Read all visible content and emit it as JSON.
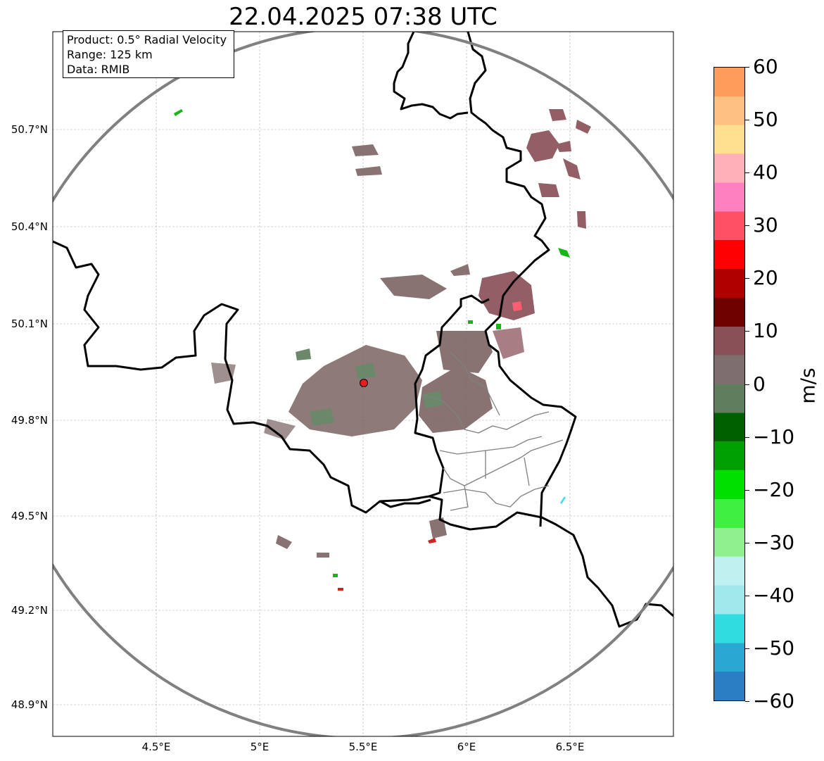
{
  "title": "22.04.2025 07:38 UTC",
  "info": {
    "product": "Product: 0.5° Radial Velocity",
    "range": "Range: 125 km",
    "source": "Data: RMIB"
  },
  "axes": {
    "lat_labels": [
      "50.7°N",
      "50.4°N",
      "50.1°N",
      "49.8°N",
      "49.5°N",
      "49.2°N",
      "48.9°N"
    ],
    "lat_values": [
      50.7,
      50.4,
      50.1,
      49.8,
      49.5,
      49.2,
      48.9
    ],
    "lon_labels": [
      "4.5°E",
      "5°E",
      "5.5°E",
      "6°E",
      "6.5°E"
    ],
    "lon_values": [
      4.5,
      5.0,
      5.5,
      6.0,
      6.5
    ],
    "lon_range": [
      4.0,
      7.0
    ],
    "lat_range": [
      48.8,
      51.0
    ],
    "grid": true
  },
  "colorbar": {
    "unit": "m/s",
    "tick_labels": [
      "60",
      "50",
      "40",
      "30",
      "20",
      "10",
      "0",
      "−10",
      "−20",
      "−30",
      "−40",
      "−50",
      "−60"
    ],
    "tick_values": [
      60,
      50,
      40,
      30,
      20,
      10,
      0,
      -10,
      -20,
      -30,
      -40,
      -50,
      -60
    ],
    "range": [
      -60,
      60
    ],
    "colors": [
      "#2a7fc4",
      "#2aa8d2",
      "#30dce0",
      "#a0e8ec",
      "#c0f0f0",
      "#90f090",
      "#40f040",
      "#00e000",
      "#00a000",
      "#006000",
      "#5e7e5e",
      "#7e6e6e",
      "#8a5058",
      "#6e0000",
      "#b00000",
      "#ff0000",
      "#ff5065",
      "#ff80c0",
      "#ffb0b8",
      "#ffe090",
      "#ffc080",
      "#ff9a5a"
    ]
  },
  "radar": {
    "site_lon": 5.505,
    "site_lat": 49.914,
    "range_km": 125,
    "site_color": "#e02020",
    "ring_color": "#808080"
  }
}
